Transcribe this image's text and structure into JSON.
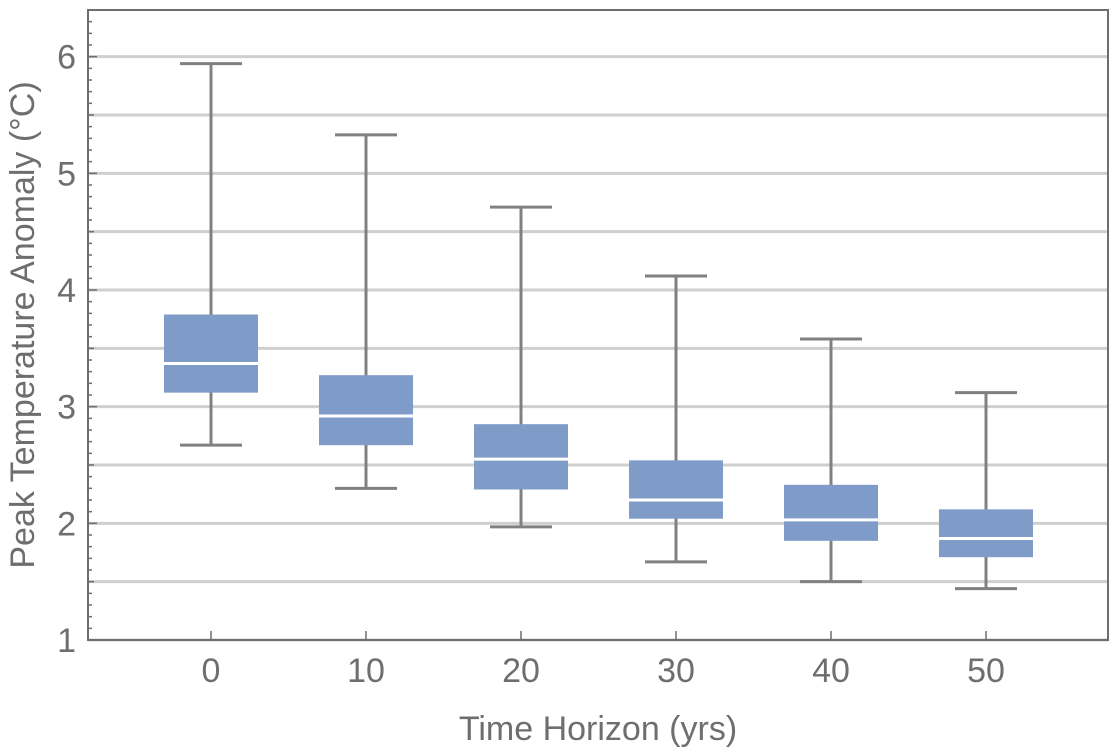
{
  "chart_data": {
    "type": "box",
    "xlabel": "Time Horizon (yrs)",
    "ylabel": "Peak Temperature Anomaly (°C)",
    "ylim": [
      1,
      6.4
    ],
    "yticks": [
      "1",
      "2",
      "3",
      "4",
      "5",
      "6"
    ],
    "ygrid": [
      1,
      1.5,
      2,
      2.5,
      3,
      3.5,
      4,
      4.5,
      5,
      5.5,
      6
    ],
    "grid": true,
    "colors": {
      "box": "#7f9cc8",
      "median": "#ffffff",
      "whisker": "#808080",
      "grid": "#cfcfcf",
      "frame": "#6e6e6e"
    },
    "categories": [
      "0",
      "10",
      "20",
      "30",
      "40",
      "50"
    ],
    "boxes": [
      {
        "label": "0",
        "min": 2.67,
        "q1": 3.12,
        "median": 3.37,
        "q3": 3.79,
        "max": 5.94
      },
      {
        "label": "10",
        "min": 2.3,
        "q1": 2.67,
        "median": 2.92,
        "q3": 3.27,
        "max": 5.33
      },
      {
        "label": "20",
        "min": 1.97,
        "q1": 2.29,
        "median": 2.55,
        "q3": 2.85,
        "max": 4.71
      },
      {
        "label": "30",
        "min": 1.67,
        "q1": 2.04,
        "median": 2.2,
        "q3": 2.54,
        "max": 4.12
      },
      {
        "label": "40",
        "min": 1.5,
        "q1": 1.85,
        "median": 2.03,
        "q3": 2.33,
        "max": 3.58
      },
      {
        "label": "50",
        "min": 1.44,
        "q1": 1.71,
        "median": 1.87,
        "q3": 2.12,
        "max": 3.12
      }
    ]
  }
}
